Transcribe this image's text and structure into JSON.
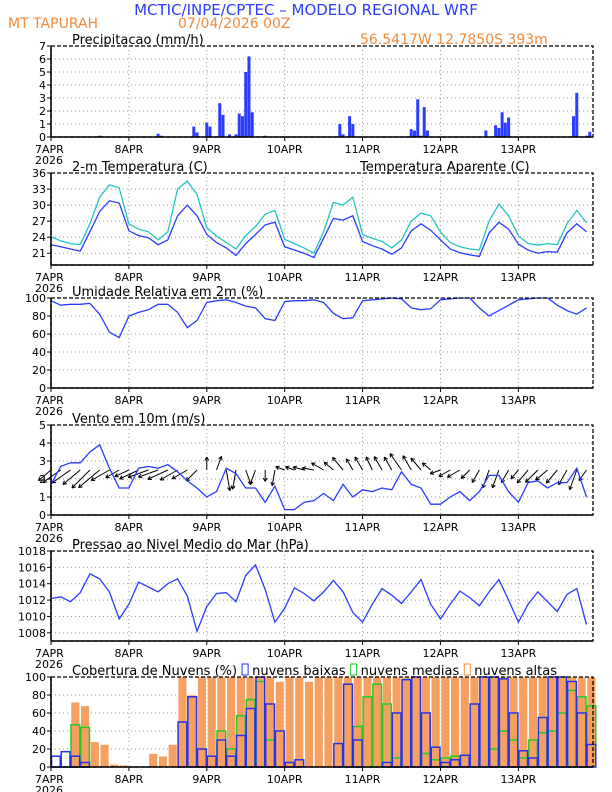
{
  "header": {
    "title": "MCTIC/INPE/CPTEC – MODELO REGIONAL WRF",
    "station": "MT TAPURAH",
    "run": "07/04/2026 00Z",
    "location": "56.5417W 12.7850S 393m"
  },
  "colors": {
    "title": "#2b3cff",
    "orange_text": "#f08a3c",
    "line": "#2b3cff",
    "apparent": "#22c4c4",
    "low": "#2233ee",
    "mid": "#22cc22",
    "high": "#f5a060"
  },
  "time_axis": {
    "ticks": [
      "7APR",
      "8APR",
      "9APR",
      "10APR",
      "11APR",
      "12APR",
      "13APR"
    ],
    "year": "2026",
    "end": "13APR 23Z"
  },
  "times": [
    "07APR 00Z",
    "07APR 03Z",
    "07APR 06Z",
    "07APR 09Z",
    "07APR 12Z",
    "07APR 15Z",
    "07APR 18Z",
    "07APR 21Z",
    "08APR 00Z",
    "08APR 03Z",
    "08APR 06Z",
    "08APR 09Z",
    "08APR 12Z",
    "08APR 15Z",
    "08APR 18Z",
    "08APR 21Z",
    "09APR 00Z",
    "09APR 03Z",
    "09APR 06Z",
    "09APR 09Z",
    "09APR 12Z",
    "09APR 15Z",
    "09APR 18Z",
    "09APR 21Z",
    "10APR 00Z",
    "10APR 03Z",
    "10APR 06Z",
    "10APR 09Z",
    "10APR 12Z",
    "10APR 15Z",
    "10APR 18Z",
    "10APR 21Z",
    "11APR 00Z",
    "11APR 03Z",
    "11APR 06Z",
    "11APR 09Z",
    "11APR 12Z",
    "11APR 15Z",
    "11APR 18Z",
    "11APR 21Z",
    "12APR 00Z",
    "12APR 03Z",
    "12APR 06Z",
    "12APR 09Z",
    "12APR 12Z",
    "12APR 15Z",
    "12APR 18Z",
    "12APR 21Z",
    "13APR 00Z",
    "13APR 03Z",
    "13APR 06Z",
    "13APR 09Z",
    "13APR 12Z",
    "13APR 15Z",
    "13APR 18Z",
    "13APR 21Z"
  ],
  "chart_data": [
    {
      "type": "bar",
      "title": "Precipitacao (mm/h)",
      "ylim": [
        0,
        7
      ],
      "yticks": [
        0,
        1,
        2,
        3,
        4,
        5,
        6,
        7
      ],
      "grid": true,
      "bars": [
        [
          "07APR 15Z",
          0.1
        ],
        [
          "08APR 09Z",
          0.25
        ],
        [
          "08APR 10Z",
          0.1
        ],
        [
          "08APR 20Z",
          0.8
        ],
        [
          "08APR 21Z",
          0.35
        ],
        [
          "09APR 00Z",
          1.1
        ],
        [
          "09APR 01Z",
          0.8
        ],
        [
          "09APR 04Z",
          2.6
        ],
        [
          "09APR 05Z",
          1.7
        ],
        [
          "09APR 07Z",
          0.2
        ],
        [
          "09APR 09Z",
          0.2
        ],
        [
          "09APR 10Z",
          1.8
        ],
        [
          "09APR 11Z",
          1.6
        ],
        [
          "09APR 12Z",
          5.0
        ],
        [
          "09APR 13Z",
          6.2
        ],
        [
          "09APR 14Z",
          1.9
        ],
        [
          "09APR 18Z",
          0.1
        ],
        [
          "10APR 17Z",
          1.0
        ],
        [
          "10APR 18Z",
          0.2
        ],
        [
          "10APR 20Z",
          1.6
        ],
        [
          "10APR 21Z",
          1.0
        ],
        [
          "11APR 15Z",
          0.6
        ],
        [
          "11APR 16Z",
          0.5
        ],
        [
          "11APR 17Z",
          2.9
        ],
        [
          "11APR 18Z",
          0.1
        ],
        [
          "11APR 19Z",
          2.3
        ],
        [
          "11APR 20Z",
          0.5
        ],
        [
          "12APR 14Z",
          0.5
        ],
        [
          "12APR 17Z",
          0.9
        ],
        [
          "12APR 18Z",
          0.7
        ],
        [
          "12APR 19Z",
          1.9
        ],
        [
          "12APR 20Z",
          1.1
        ],
        [
          "12APR 21Z",
          1.5
        ],
        [
          "13APR 17Z",
          1.6
        ],
        [
          "13APR 18Z",
          3.4
        ],
        [
          "13APR 21Z",
          0.1
        ],
        [
          "13APR 22Z",
          0.4
        ]
      ]
    },
    {
      "type": "line",
      "title": "2-m Temperatura (C)",
      "ylim": [
        18.8,
        36
      ],
      "yticks": [
        21,
        24,
        27,
        30,
        33,
        36
      ],
      "grid": true,
      "series": [
        {
          "values": [
            22.6,
            22.2,
            21.8,
            21.4,
            25.0,
            28.8,
            30.8,
            30.4,
            25.2,
            24.3,
            23.9,
            22.6,
            23.5,
            28.0,
            30.0,
            28.0,
            24.5,
            23.0,
            22.0,
            20.6,
            22.8,
            24.5,
            26.3,
            26.8,
            22.2,
            21.6,
            21.0,
            20.2,
            23.8,
            27.5,
            27.2,
            28.0,
            23.2,
            22.4,
            21.8,
            20.8,
            22.0,
            25.2,
            26.5,
            25.3,
            23.5,
            21.8,
            21.1,
            20.7,
            20.4,
            24.8,
            26.8,
            25.5,
            22.7,
            21.6,
            21.0,
            21.3,
            21.2,
            24.8,
            26.5,
            25.0
          ]
        },
        {
          "name": "Temperatura Aparente (C)",
          "values": [
            24.1,
            23.3,
            22.8,
            22.6,
            26.5,
            31.5,
            33.8,
            33.2,
            26.5,
            25.5,
            25.0,
            23.5,
            25.0,
            33.0,
            34.5,
            32.0,
            25.8,
            24.2,
            23.0,
            21.8,
            24.3,
            26.0,
            28.3,
            29.0,
            23.6,
            22.8,
            22.0,
            21.0,
            25.0,
            30.5,
            30.0,
            31.5,
            24.5,
            23.8,
            23.2,
            22.0,
            23.5,
            27.0,
            28.5,
            28.0,
            25.0,
            23.0,
            22.2,
            21.8,
            21.6,
            27.0,
            30.2,
            28.0,
            24.3,
            22.8,
            22.5,
            22.8,
            22.6,
            26.5,
            29.0,
            26.7
          ]
        }
      ]
    },
    {
      "type": "line",
      "title": "Umidade Relativa em 2m (%)",
      "ylim": [
        0,
        100
      ],
      "yticks": [
        0,
        20,
        40,
        60,
        80,
        100
      ],
      "grid": true,
      "series": [
        {
          "values": [
            97,
            92,
            93,
            93,
            94,
            82,
            62,
            56,
            80,
            84,
            87,
            93,
            93,
            84,
            67,
            75,
            95,
            97,
            98,
            95,
            91,
            89,
            77,
            75,
            96,
            97,
            97,
            98,
            95,
            83,
            77,
            78,
            97,
            98,
            99,
            100,
            99,
            89,
            87,
            88,
            98,
            99,
            100,
            100,
            89,
            80,
            86,
            92,
            98,
            99,
            100,
            100,
            92,
            86,
            82,
            89
          ]
        }
      ]
    },
    {
      "type": "line",
      "title": "Vento em 10m (m/s)",
      "ylim": [
        0,
        5
      ],
      "yticks": [
        0,
        1,
        2,
        3,
        4,
        5
      ],
      "grid": true,
      "series": [
        {
          "values": [
            1.7,
            2.7,
            2.9,
            2.9,
            3.5,
            3.9,
            2.6,
            1.5,
            1.5,
            2.6,
            2.7,
            2.6,
            2.8,
            2.4,
            1.9,
            1.5,
            1.0,
            1.3,
            2.6,
            2.3,
            1.5,
            1.5,
            0.7,
            1.6,
            0.3,
            0.3,
            0.7,
            0.8,
            1.2,
            0.8,
            1.7,
            1.0,
            1.4,
            1.3,
            1.5,
            1.4,
            2.4,
            1.7,
            1.5,
            0.6,
            0.6,
            1.0,
            1.3,
            0.8,
            1.3,
            2.2,
            2.2,
            1.3,
            0.7,
            1.8,
            1.9,
            1.5,
            1.8,
            1.8,
            2.6,
            1.0
          ]
        }
      ],
      "wind_direction_from_deg": [
        50,
        55,
        55,
        50,
        45,
        50,
        60,
        60,
        65,
        65,
        70,
        70,
        65,
        60,
        60,
        45,
        180,
        200,
        350,
        10,
        340,
        20,
        0,
        10,
        110,
        110,
        105,
        100,
        120,
        130,
        140,
        150,
        150,
        155,
        150,
        150,
        145,
        150,
        140,
        130,
        70,
        60,
        60,
        45,
        30,
        20,
        20,
        30,
        40,
        40,
        45,
        50,
        40,
        30,
        20,
        35
      ]
    },
    {
      "type": "line",
      "title": "Pressao ao Nivel Medio do Mar (hPa)",
      "ylim": [
        1007,
        1018
      ],
      "yticks": [
        1008,
        1010,
        1012,
        1014,
        1016,
        1018
      ],
      "grid": true,
      "series": [
        {
          "values": [
            1012.2,
            1012.4,
            1011.8,
            1012.9,
            1015.2,
            1014.6,
            1013.0,
            1009.7,
            1011.5,
            1014.2,
            1013.6,
            1013.0,
            1014.0,
            1014.6,
            1012.5,
            1008.2,
            1011.2,
            1012.8,
            1012.9,
            1011.8,
            1015.0,
            1016.3,
            1013.3,
            1009.3,
            1011.0,
            1013.5,
            1012.8,
            1011.9,
            1013.0,
            1014.4,
            1013.0,
            1010.5,
            1009.3,
            1011.5,
            1013.4,
            1012.6,
            1011.6,
            1013.0,
            1014.5,
            1011.5,
            1009.7,
            1011.5,
            1013.1,
            1012.3,
            1011.3,
            1013.0,
            1014.5,
            1012.0,
            1009.3,
            1011.5,
            1013.0,
            1011.8,
            1010.6,
            1012.7,
            1013.4,
            1009.0
          ]
        }
      ]
    },
    {
      "type": "bar",
      "title": "Cobertura de Nuvens (%)",
      "ylim": [
        0,
        100
      ],
      "yticks": [
        0,
        20,
        40,
        60,
        80,
        100
      ],
      "grid": true,
      "series": [
        {
          "name": "nuvens baixas",
          "values": [
            12,
            17,
            12,
            5,
            0,
            0,
            0,
            0,
            0,
            0,
            0,
            0,
            0,
            50,
            78,
            20,
            12,
            30,
            12,
            35,
            65,
            100,
            70,
            40,
            5,
            8,
            0,
            0,
            0,
            26,
            92,
            30,
            0,
            0,
            5,
            60,
            97,
            100,
            60,
            22,
            5,
            8,
            13,
            70,
            100,
            100,
            98,
            60,
            18,
            10,
            55,
            100,
            100,
            95,
            60,
            25
          ]
        },
        {
          "name": "nuvens medias",
          "values": [
            0,
            0,
            47,
            44,
            0,
            0,
            0,
            0,
            0,
            0,
            0,
            0,
            0,
            0,
            0,
            0,
            0,
            40,
            20,
            57,
            75,
            95,
            30,
            0,
            0,
            0,
            0,
            0,
            0,
            0,
            0,
            45,
            78,
            92,
            70,
            10,
            0,
            0,
            15,
            8,
            10,
            12,
            0,
            0,
            0,
            20,
            40,
            30,
            10,
            30,
            38,
            40,
            60,
            85,
            78,
            68
          ]
        },
        {
          "name": "nuvens altas",
          "values": [
            0,
            0,
            72,
            68,
            28,
            25,
            3,
            2,
            0,
            0,
            15,
            12,
            25,
            100,
            80,
            100,
            100,
            100,
            100,
            100,
            100,
            100,
            100,
            95,
            100,
            100,
            95,
            100,
            100,
            100,
            100,
            100,
            100,
            100,
            100,
            100,
            100,
            100,
            100,
            100,
            100,
            100,
            100,
            100,
            100,
            100,
            100,
            100,
            100,
            100,
            100,
            100,
            100,
            100,
            100,
            100
          ]
        }
      ]
    }
  ]
}
